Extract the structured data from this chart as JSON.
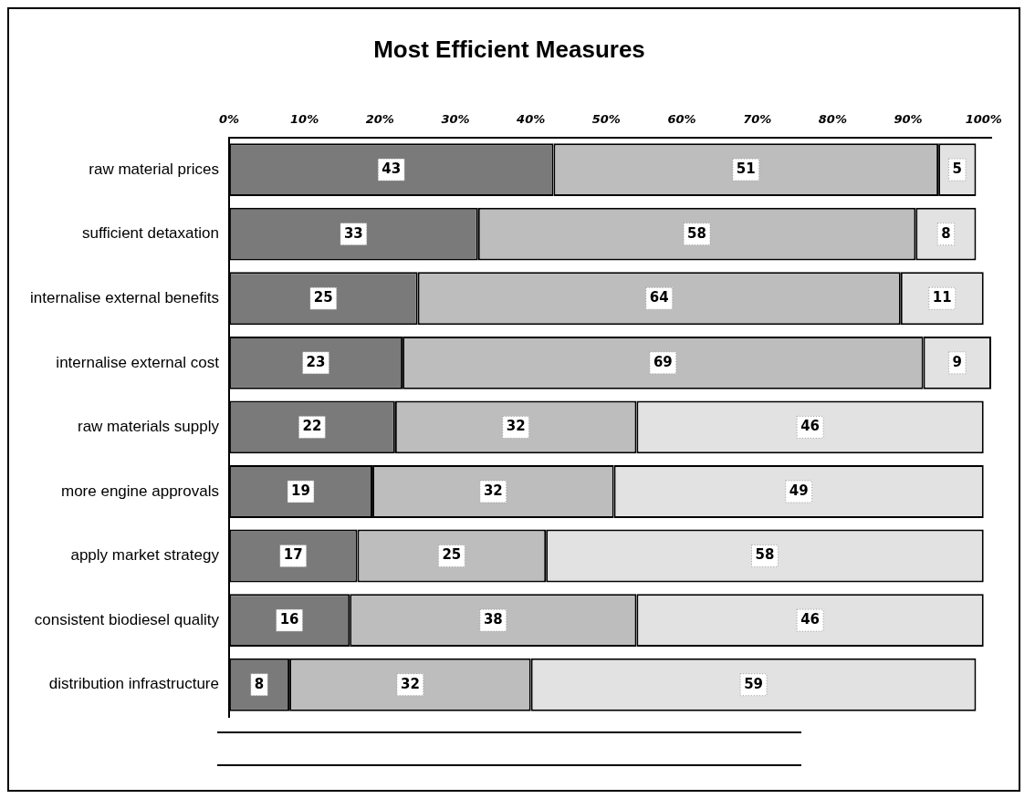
{
  "chart_data": {
    "type": "bar",
    "title": "Most Efficient Measures",
    "orientation": "horizontal",
    "stacked": true,
    "data_labels": true,
    "grid": false,
    "legend": false,
    "categories": [
      "raw material prices",
      "sufficient detaxation",
      "internalise external benefits",
      "internalise external cost",
      "raw materials supply",
      "more engine approvals",
      "apply market strategy",
      "consistent biodiesel quality",
      "distribution infrastructure"
    ],
    "series": [
      {
        "color": "#7a7a7a",
        "values": [
          43,
          33,
          25,
          23,
          22,
          19,
          17,
          16,
          8
        ]
      },
      {
        "color": "#bdbdbd",
        "values": [
          51,
          58,
          64,
          69,
          32,
          32,
          25,
          38,
          32
        ]
      },
      {
        "color": "#e2e2e2",
        "values": [
          5,
          8,
          11,
          9,
          46,
          49,
          58,
          46,
          59
        ]
      }
    ],
    "xlim": [
      0,
      101
    ],
    "xticks": [
      {
        "value": 0,
        "label": "0%"
      },
      {
        "value": 10,
        "label": "10%"
      },
      {
        "value": 20,
        "label": "20%"
      },
      {
        "value": 30,
        "label": "30%"
      },
      {
        "value": 40,
        "label": "40%"
      },
      {
        "value": 50,
        "label": "50%"
      },
      {
        "value": 60,
        "label": "60%"
      },
      {
        "value": 70,
        "label": "70%"
      },
      {
        "value": 80,
        "label": "80%"
      },
      {
        "value": 90,
        "label": "90%"
      },
      {
        "value": 100,
        "label": "100%"
      }
    ]
  }
}
